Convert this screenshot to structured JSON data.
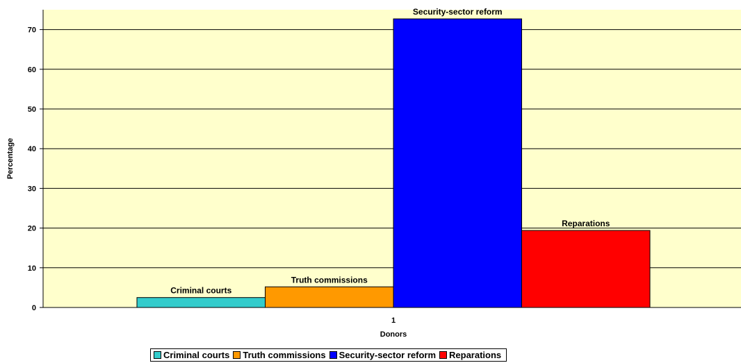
{
  "chart_data": {
    "type": "bar",
    "categories": [
      "1"
    ],
    "series": [
      {
        "name": "Criminal courts",
        "values": [
          2.5
        ],
        "color": "#33CCCC"
      },
      {
        "name": "Truth commissions",
        "values": [
          5.2
        ],
        "color": "#FF9900"
      },
      {
        "name": "Security-sector reform",
        "values": [
          72.7
        ],
        "color": "#0000FF"
      },
      {
        "name": "Reparations",
        "values": [
          19.4
        ],
        "color": "#FF0000"
      }
    ],
    "title": "",
    "xlabel": "Donors",
    "ylabel": "Percentage",
    "ylim": [
      0,
      75
    ],
    "yticks": [
      0,
      10,
      20,
      30,
      40,
      50,
      60,
      70
    ],
    "grid": true,
    "data_labels": true,
    "legend_position": "bottom",
    "plot_background": "#FFFFCC"
  }
}
